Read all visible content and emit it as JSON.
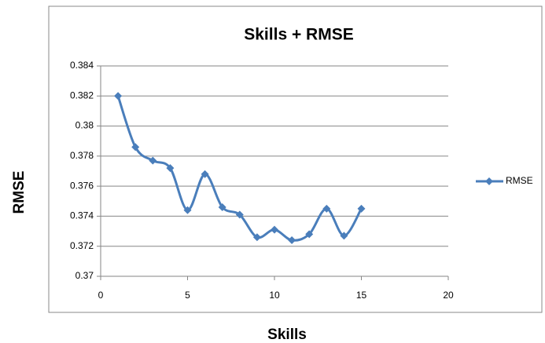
{
  "chart_data": {
    "type": "line",
    "title": "Skills + RMSE",
    "x_label": "Skills",
    "y_label": "RMSE",
    "series": [
      {
        "name": "RMSE",
        "color": "#4a7ebb",
        "x": [
          1,
          2,
          3,
          4,
          5,
          6,
          7,
          8,
          9,
          10,
          11,
          12,
          13,
          14,
          15
        ],
        "values": [
          0.382,
          0.3786,
          0.3777,
          0.3772,
          0.3744,
          0.3768,
          0.3746,
          0.3741,
          0.3726,
          0.3731,
          0.3724,
          0.3728,
          0.3745,
          0.3727,
          0.3745
        ]
      }
    ],
    "xlim": [
      0,
      20
    ],
    "xticks": [
      0,
      5,
      10,
      15,
      20
    ],
    "ylim": [
      0.37,
      0.384
    ],
    "yticks": [
      0.37,
      0.372,
      0.374,
      0.376,
      0.378,
      0.38,
      0.382,
      0.384
    ],
    "grid": true,
    "smooth": true,
    "legend": "right"
  }
}
